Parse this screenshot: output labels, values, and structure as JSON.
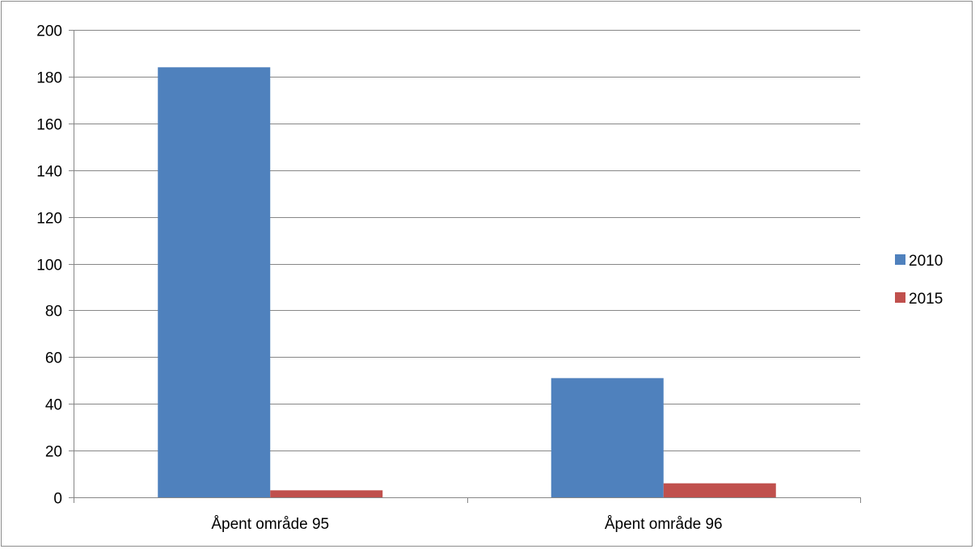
{
  "chart_data": {
    "type": "bar",
    "title": "",
    "xlabel": "",
    "ylabel": "",
    "categories": [
      "Åpent område 95",
      "Åpent område 96"
    ],
    "series": [
      {
        "name": "2010",
        "values": [
          184,
          51
        ],
        "color": "#4f81bd"
      },
      {
        "name": "2015",
        "values": [
          3,
          6
        ],
        "color": "#c0504d"
      }
    ],
    "ylim": [
      0,
      200
    ],
    "yticks": [
      0,
      20,
      40,
      60,
      80,
      100,
      120,
      140,
      160,
      180,
      200
    ],
    "grid": "horizontal",
    "legend_position": "right"
  }
}
